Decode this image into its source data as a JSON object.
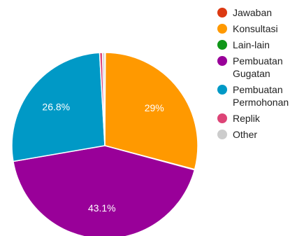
{
  "chart_data": {
    "type": "pie",
    "title": "",
    "slices": [
      {
        "label": "Jawaban",
        "value": 0.1,
        "color": "#dc3912",
        "display": ""
      },
      {
        "label": "Konsultasi",
        "value": 29,
        "color": "#ff9900",
        "display": "29%"
      },
      {
        "label": "Lain-lain",
        "value": 0.1,
        "color": "#109618",
        "display": ""
      },
      {
        "label": "Pembuatan Gugatan",
        "value": 43.1,
        "color": "#990099",
        "display": "43.1%"
      },
      {
        "label": "Pembuatan Permohonan",
        "value": 26.8,
        "color": "#0099c6",
        "display": "26.8%"
      },
      {
        "label": "Replik",
        "value": 0.5,
        "color": "#dd4477",
        "display": ""
      },
      {
        "label": "Other",
        "value": 0.4,
        "color": "#cccccc",
        "display": ""
      }
    ],
    "legend": {
      "position": "right",
      "items": [
        {
          "lines": [
            "Jawaban"
          ],
          "color": "#dc3912"
        },
        {
          "lines": [
            "Konsultasi"
          ],
          "color": "#ff9900"
        },
        {
          "lines": [
            "Lain-lain"
          ],
          "color": "#109618"
        },
        {
          "lines": [
            "Pembuatan",
            "Gugatan"
          ],
          "color": "#990099"
        },
        {
          "lines": [
            "Pembuatan",
            "Permohonan"
          ],
          "color": "#0099c6"
        },
        {
          "lines": [
            "Replik"
          ],
          "color": "#dd4477"
        },
        {
          "lines": [
            "Other"
          ],
          "color": "#cccccc"
        }
      ]
    }
  }
}
